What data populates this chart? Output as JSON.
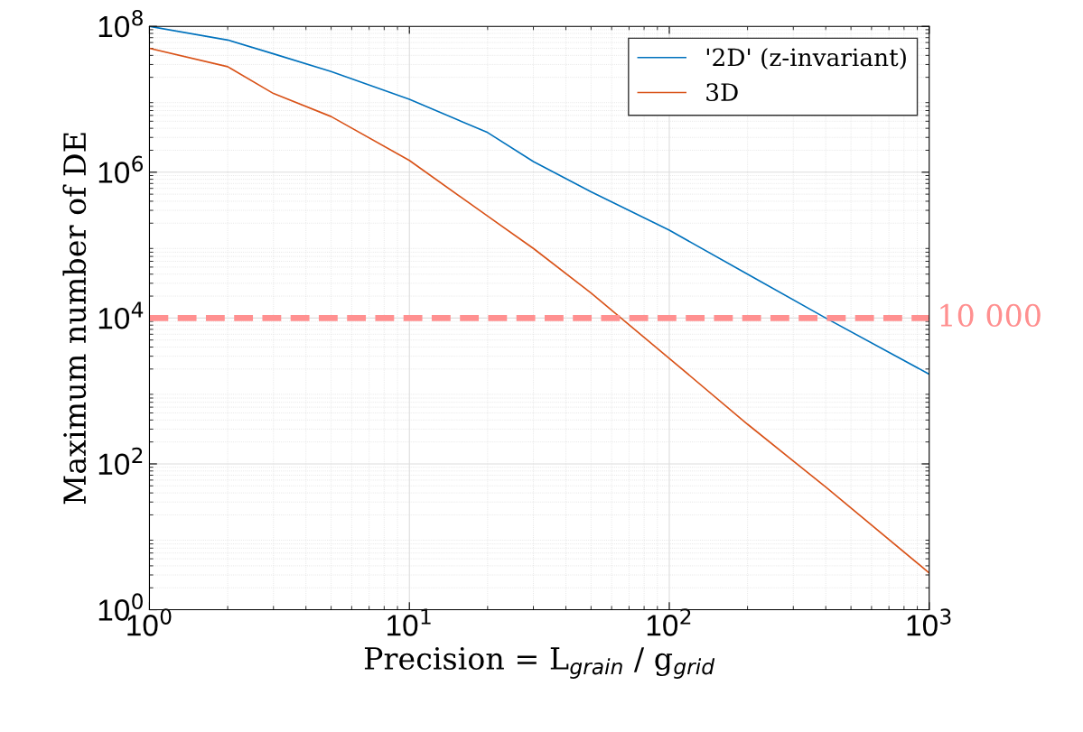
{
  "chart_data": {
    "type": "line",
    "xlabel": "Precision = L$_{grain}$ / g$_{grid}$",
    "ylabel": "Maximum number of DE",
    "log": "xy",
    "grid": true,
    "legend": "top right",
    "marker": "none",
    "line_style": "solid",
    "xlim": [
      1,
      1000
    ],
    "xticks": [
      {
        "value": 1,
        "label": "10$^{0}$"
      },
      {
        "value": 10,
        "label": "10$^{1}$"
      },
      {
        "value": 100,
        "label": "10$^{2}$"
      },
      {
        "value": 1000,
        "label": "10$^{3}$"
      }
    ],
    "ylim": [
      1,
      100000000
    ],
    "yticks": [
      {
        "value": 1,
        "label": "10$^{0}$"
      },
      {
        "value": 100,
        "label": "10$^{2}$"
      },
      {
        "value": 10000,
        "label": "10$^{4}$"
      },
      {
        "value": 1000000,
        "label": "10$^{6}$"
      },
      {
        "value": 100000000,
        "label": "10$^{8}$"
      }
    ],
    "x": [
      1,
      2,
      3,
      5,
      10,
      20,
      30,
      50,
      100,
      200,
      400,
      1000
    ],
    "series": [
      {
        "name": "'2D' (z-invariant)",
        "color": "#0072bd",
        "values": [
          100000000,
          65000000,
          42000000,
          24000000,
          10000000,
          3500000,
          1400000,
          540000,
          160000,
          40000,
          10000,
          1700
        ]
      },
      {
        "name": "3D",
        "color": "#d95319",
        "values": [
          50000000,
          28000000,
          12000000,
          5800000,
          1450000,
          250000,
          90000,
          22000,
          2800,
          350,
          48,
          3.2
        ]
      }
    ],
    "ref_lines": [
      {
        "axis": "y",
        "value": 10000,
        "label": "10 000",
        "color": "#ff9090",
        "line_style": "dashed"
      }
    ]
  }
}
